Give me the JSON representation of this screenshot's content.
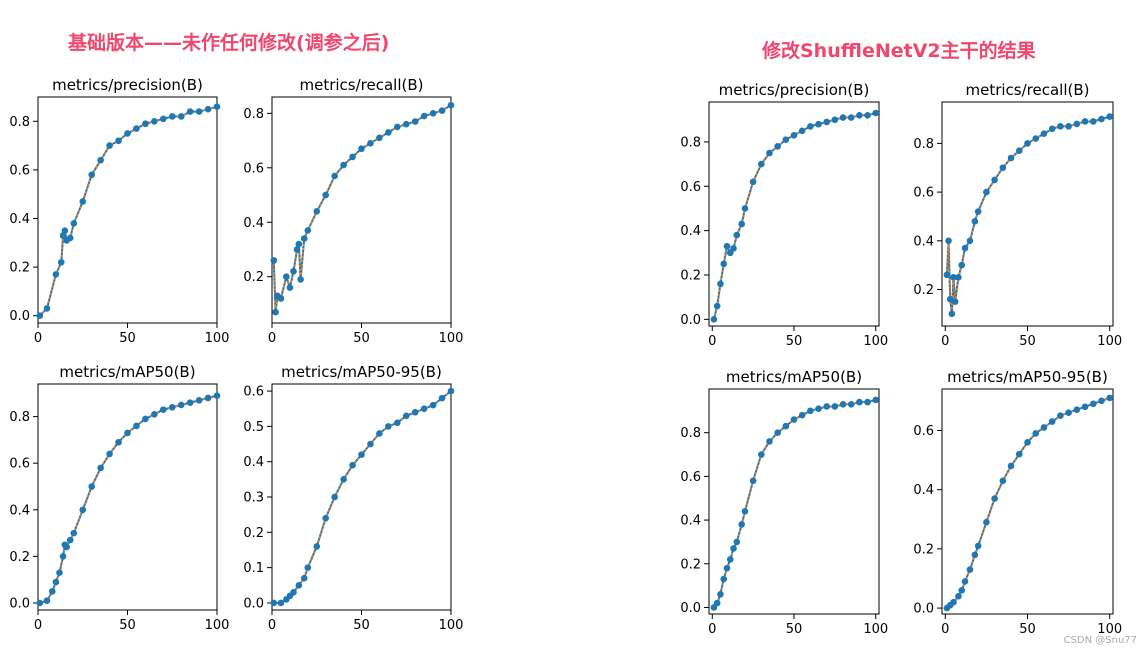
{
  "colors": {
    "heading": "#f0476f",
    "marker": "#1f77b4",
    "smooth": "#ff7f0e",
    "axis": "#000000"
  },
  "groups": [
    {
      "heading": "基础版本——未作任何修改(调参之后)"
    },
    {
      "heading": "修改ShuffleNetV2主干的结果"
    }
  ],
  "watermark": "CSDN @Snu77",
  "chart_data": [
    {
      "type": "line",
      "title": "metrics/precision(B)",
      "xlim": [
        0,
        100
      ],
      "ylim": [
        -0.03,
        0.9
      ],
      "xticks": [
        0,
        50,
        100
      ],
      "yticks": [
        0.0,
        0.2,
        0.4,
        0.6,
        0.8
      ],
      "xtick_labels": [
        "0",
        "50",
        "100"
      ],
      "ytick_labels": [
        "0.0",
        "0.2",
        "0.4",
        "0.6",
        "0.8"
      ],
      "x": [
        1,
        5,
        10,
        13,
        14,
        15,
        16,
        18,
        20,
        25,
        30,
        35,
        40,
        45,
        50,
        55,
        60,
        65,
        70,
        75,
        80,
        85,
        90,
        95,
        100
      ],
      "y": [
        0.0,
        0.03,
        0.17,
        0.22,
        0.33,
        0.35,
        0.31,
        0.32,
        0.38,
        0.47,
        0.58,
        0.64,
        0.7,
        0.72,
        0.75,
        0.77,
        0.79,
        0.8,
        0.81,
        0.82,
        0.82,
        0.84,
        0.84,
        0.85,
        0.86
      ]
    },
    {
      "type": "line",
      "title": "metrics/recall(B)",
      "xlim": [
        0,
        100
      ],
      "ylim": [
        0.03,
        0.86
      ],
      "xticks": [
        0,
        50,
        100
      ],
      "yticks": [
        0.2,
        0.4,
        0.6,
        0.8
      ],
      "xtick_labels": [
        "0",
        "50",
        "100"
      ],
      "ytick_labels": [
        "0.2",
        "0.4",
        "0.6",
        "0.8"
      ],
      "x": [
        1,
        2,
        3,
        5,
        8,
        10,
        12,
        14,
        15,
        16,
        18,
        20,
        25,
        30,
        35,
        40,
        45,
        50,
        55,
        60,
        65,
        70,
        75,
        80,
        85,
        90,
        95,
        100
      ],
      "y": [
        0.26,
        0.07,
        0.13,
        0.12,
        0.2,
        0.16,
        0.22,
        0.3,
        0.32,
        0.19,
        0.34,
        0.37,
        0.44,
        0.5,
        0.57,
        0.61,
        0.64,
        0.67,
        0.69,
        0.71,
        0.73,
        0.75,
        0.76,
        0.77,
        0.79,
        0.8,
        0.81,
        0.83
      ]
    },
    {
      "type": "line",
      "title": "metrics/mAP50(B)",
      "xlim": [
        0,
        100
      ],
      "ylim": [
        -0.03,
        0.94
      ],
      "xticks": [
        0,
        50,
        100
      ],
      "yticks": [
        0.0,
        0.2,
        0.4,
        0.6,
        0.8
      ],
      "xtick_labels": [
        "0",
        "50",
        "100"
      ],
      "ytick_labels": [
        "0.0",
        "0.2",
        "0.4",
        "0.6",
        "0.8"
      ],
      "x": [
        1,
        5,
        8,
        10,
        12,
        14,
        15,
        16,
        18,
        20,
        25,
        30,
        35,
        40,
        45,
        50,
        55,
        60,
        65,
        70,
        75,
        80,
        85,
        90,
        95,
        100
      ],
      "y": [
        0.0,
        0.01,
        0.05,
        0.09,
        0.13,
        0.2,
        0.25,
        0.24,
        0.27,
        0.3,
        0.4,
        0.5,
        0.58,
        0.64,
        0.69,
        0.73,
        0.76,
        0.79,
        0.81,
        0.83,
        0.84,
        0.85,
        0.86,
        0.87,
        0.88,
        0.89
      ]
    },
    {
      "type": "line",
      "title": "metrics/mAP50-95(B)",
      "xlim": [
        0,
        100
      ],
      "ylim": [
        -0.02,
        0.62
      ],
      "xticks": [
        0,
        50,
        100
      ],
      "yticks": [
        0.0,
        0.1,
        0.2,
        0.3,
        0.4,
        0.5,
        0.6
      ],
      "xtick_labels": [
        "0",
        "50",
        "100"
      ],
      "ytick_labels": [
        "0.0",
        "0.1",
        "0.2",
        "0.3",
        "0.4",
        "0.5",
        "0.6"
      ],
      "x": [
        1,
        5,
        8,
        10,
        12,
        15,
        18,
        20,
        25,
        30,
        35,
        40,
        45,
        50,
        55,
        60,
        65,
        70,
        75,
        80,
        85,
        90,
        95,
        100
      ],
      "y": [
        0.0,
        0.0,
        0.01,
        0.02,
        0.03,
        0.05,
        0.07,
        0.1,
        0.16,
        0.24,
        0.3,
        0.35,
        0.39,
        0.42,
        0.45,
        0.48,
        0.5,
        0.51,
        0.53,
        0.54,
        0.55,
        0.56,
        0.58,
        0.6
      ]
    },
    {
      "type": "line",
      "title": "metrics/precision(B)",
      "xlim": [
        -2,
        102
      ],
      "ylim": [
        -0.03,
        0.98
      ],
      "xticks": [
        0,
        50,
        100
      ],
      "yticks": [
        0.0,
        0.2,
        0.4,
        0.6,
        0.8
      ],
      "xtick_labels": [
        "0",
        "50",
        "100"
      ],
      "ytick_labels": [
        "0.0",
        "0.2",
        "0.4",
        "0.6",
        "0.8"
      ],
      "x": [
        1,
        3,
        5,
        7,
        9,
        11,
        13,
        15,
        18,
        20,
        25,
        30,
        35,
        40,
        45,
        50,
        55,
        60,
        65,
        70,
        75,
        80,
        85,
        90,
        95,
        100
      ],
      "y": [
        0.0,
        0.06,
        0.16,
        0.25,
        0.33,
        0.3,
        0.32,
        0.38,
        0.43,
        0.5,
        0.62,
        0.7,
        0.75,
        0.78,
        0.81,
        0.83,
        0.85,
        0.87,
        0.88,
        0.89,
        0.9,
        0.91,
        0.91,
        0.92,
        0.92,
        0.93
      ]
    },
    {
      "type": "line",
      "title": "metrics/recall(B)",
      "xlim": [
        -2,
        102
      ],
      "ylim": [
        0.05,
        0.97
      ],
      "xticks": [
        0,
        50,
        100
      ],
      "yticks": [
        0.2,
        0.4,
        0.6,
        0.8
      ],
      "xtick_labels": [
        "0",
        "50",
        "100"
      ],
      "ytick_labels": [
        "0.2",
        "0.4",
        "0.6",
        "0.8"
      ],
      "x": [
        1,
        2,
        3,
        4,
        5,
        6,
        8,
        10,
        12,
        15,
        18,
        20,
        25,
        30,
        35,
        40,
        45,
        50,
        55,
        60,
        65,
        70,
        75,
        80,
        85,
        90,
        95,
        100
      ],
      "y": [
        0.26,
        0.4,
        0.16,
        0.1,
        0.25,
        0.15,
        0.25,
        0.3,
        0.37,
        0.4,
        0.48,
        0.52,
        0.6,
        0.65,
        0.7,
        0.74,
        0.77,
        0.8,
        0.82,
        0.84,
        0.86,
        0.87,
        0.87,
        0.88,
        0.89,
        0.89,
        0.9,
        0.91
      ]
    },
    {
      "type": "line",
      "title": "metrics/mAP50(B)",
      "xlim": [
        -2,
        102
      ],
      "ylim": [
        -0.03,
        1.0
      ],
      "xticks": [
        0,
        50,
        100
      ],
      "yticks": [
        0.0,
        0.2,
        0.4,
        0.6,
        0.8
      ],
      "xtick_labels": [
        "0",
        "50",
        "100"
      ],
      "ytick_labels": [
        "0.0",
        "0.2",
        "0.4",
        "0.6",
        "0.8"
      ],
      "x": [
        1,
        3,
        5,
        7,
        9,
        11,
        13,
        15,
        18,
        20,
        25,
        30,
        35,
        40,
        45,
        50,
        55,
        60,
        65,
        70,
        75,
        80,
        85,
        90,
        95,
        100
      ],
      "y": [
        0.0,
        0.02,
        0.06,
        0.13,
        0.18,
        0.22,
        0.27,
        0.3,
        0.38,
        0.44,
        0.58,
        0.7,
        0.76,
        0.8,
        0.83,
        0.86,
        0.88,
        0.9,
        0.91,
        0.92,
        0.92,
        0.93,
        0.93,
        0.94,
        0.94,
        0.95
      ]
    },
    {
      "type": "line",
      "title": "metrics/mAP50-95(B)",
      "xlim": [
        -2,
        102
      ],
      "ylim": [
        -0.02,
        0.74
      ],
      "xticks": [
        0,
        50,
        100
      ],
      "yticks": [
        0.0,
        0.2,
        0.4,
        0.6
      ],
      "xtick_labels": [
        "0",
        "50",
        "100"
      ],
      "ytick_labels": [
        "0.0",
        "0.2",
        "0.4",
        "0.6"
      ],
      "x": [
        1,
        3,
        5,
        8,
        10,
        12,
        15,
        18,
        20,
        25,
        30,
        35,
        40,
        45,
        50,
        55,
        60,
        65,
        70,
        75,
        80,
        85,
        90,
        95,
        100
      ],
      "y": [
        0.0,
        0.01,
        0.02,
        0.04,
        0.06,
        0.09,
        0.13,
        0.18,
        0.21,
        0.29,
        0.37,
        0.43,
        0.48,
        0.52,
        0.56,
        0.59,
        0.61,
        0.63,
        0.65,
        0.66,
        0.67,
        0.68,
        0.69,
        0.7,
        0.71
      ]
    }
  ]
}
